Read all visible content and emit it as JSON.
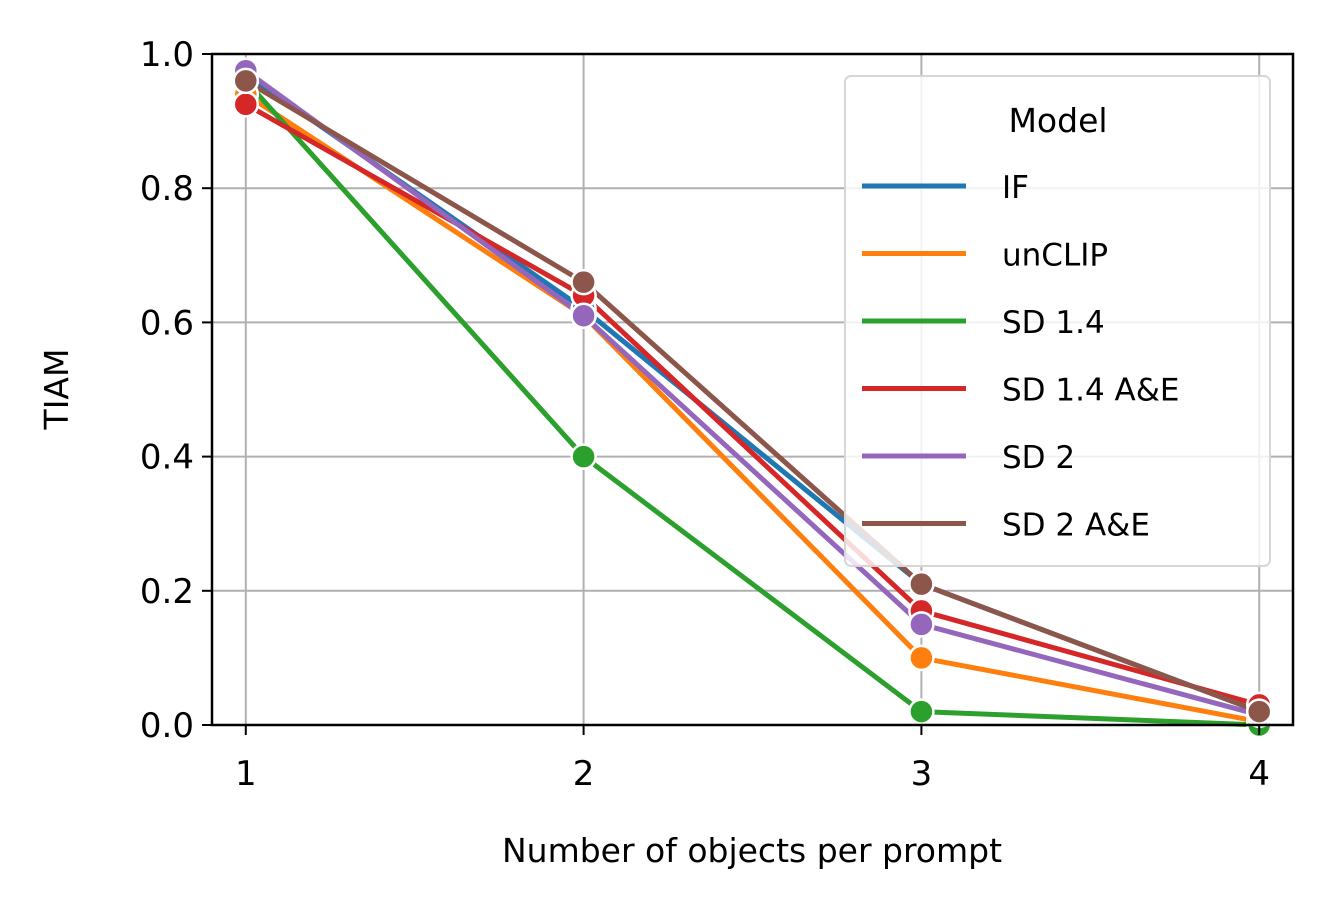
{
  "chart_data": {
    "type": "line",
    "title": "",
    "xlabel": "Number of objects per prompt",
    "ylabel": "TIAM",
    "x": [
      1,
      2,
      3,
      4
    ],
    "x_ticks": [
      "1",
      "2",
      "3",
      "4"
    ],
    "xlim": [
      0.9,
      4.1
    ],
    "ylim": [
      0.0,
      1.0
    ],
    "y_ticks": [
      "0.0",
      "0.2",
      "0.4",
      "0.6",
      "0.8",
      "1.0"
    ],
    "grid": true,
    "legend": {
      "title": "Model",
      "placement": "top-right"
    },
    "series": [
      {
        "name": "IF",
        "color": "#1f77b4",
        "values": [
          0.97,
          0.62,
          0.21,
          0.02
        ]
      },
      {
        "name": "unCLIP",
        "color": "#ff7f0e",
        "values": [
          0.94,
          0.61,
          0.1,
          0.005
        ]
      },
      {
        "name": "SD 1.4",
        "color": "#2ca02c",
        "values": [
          0.96,
          0.4,
          0.02,
          0.0
        ]
      },
      {
        "name": "SD 1.4 A&E",
        "color": "#d62728",
        "values": [
          0.925,
          0.64,
          0.17,
          0.03
        ]
      },
      {
        "name": "SD 2",
        "color": "#9467bd",
        "values": [
          0.975,
          0.61,
          0.15,
          0.015
        ]
      },
      {
        "name": "SD 2 A&E",
        "color": "#8c564b",
        "values": [
          0.96,
          0.66,
          0.21,
          0.02
        ]
      }
    ]
  }
}
